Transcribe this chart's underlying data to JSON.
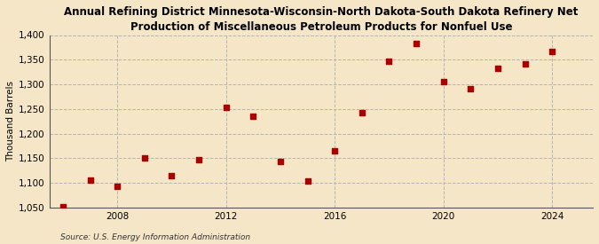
{
  "title": "Annual Refining District Minnesota-Wisconsin-North Dakota-South Dakota Refinery Net\nProduction of Miscellaneous Petroleum Products for Nonfuel Use",
  "ylabel": "Thousand Barrels",
  "source": "Source: U.S. Energy Information Administration",
  "background_color": "#f5e6c8",
  "plot_background_color": "#f5e6c8",
  "data_color": "#aa0000",
  "years": [
    2006,
    2007,
    2008,
    2009,
    2010,
    2011,
    2012,
    2013,
    2014,
    2015,
    2016,
    2017,
    2018,
    2019,
    2020,
    2021,
    2022,
    2023,
    2024
  ],
  "values": [
    1051,
    1105,
    1094,
    1150,
    1115,
    1147,
    1253,
    1235,
    1143,
    1104,
    1165,
    1243,
    1347,
    1383,
    1305,
    1291,
    1332,
    1341,
    1366
  ],
  "ylim": [
    1050,
    1400
  ],
  "yticks": [
    1050,
    1100,
    1150,
    1200,
    1250,
    1300,
    1350,
    1400
  ],
  "xlim": [
    2005.5,
    2025.5
  ],
  "xticks": [
    2008,
    2012,
    2016,
    2020,
    2024
  ],
  "grid_color": "#b0b0b0",
  "marker_size": 4.5,
  "title_fontsize": 8.5,
  "tick_fontsize": 7.5,
  "ylabel_fontsize": 7.5,
  "source_fontsize": 6.5
}
